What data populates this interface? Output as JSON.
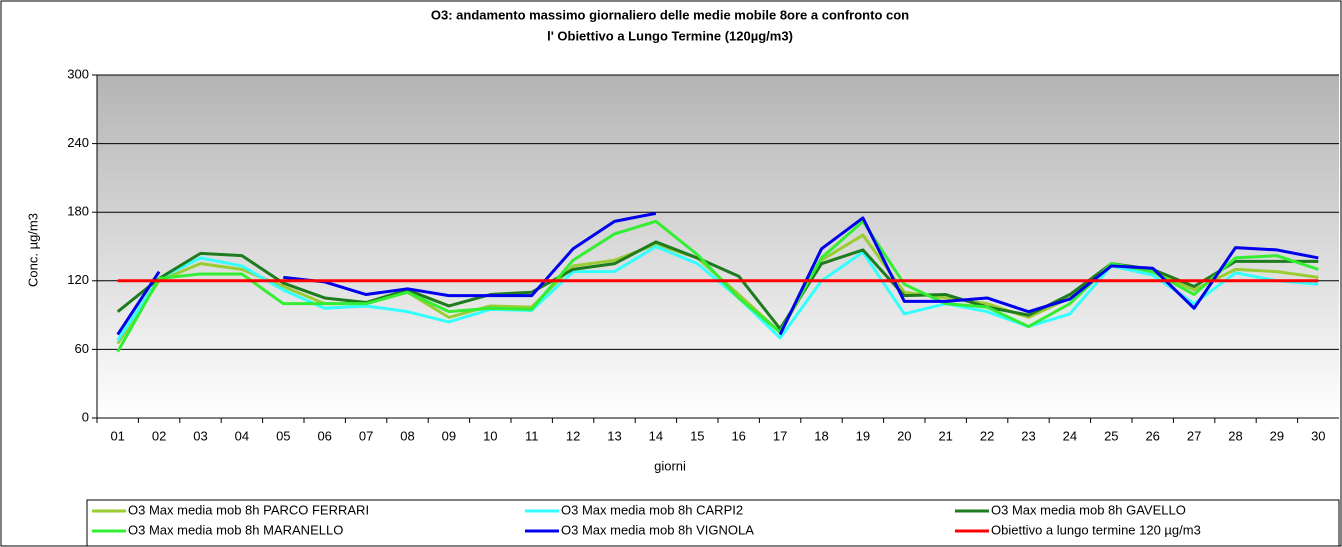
{
  "chart_data": {
    "type": "line",
    "title": [
      "O3: andamento massimo giornaliero delle medie mobile 8ore a confronto con",
      "l' Obiettivo a Lungo Termine  (120µg/m3)"
    ],
    "x_label": "giorni",
    "y_label": "Conc. µg/m3",
    "categories": [
      "01",
      "02",
      "03",
      "04",
      "05",
      "06",
      "07",
      "08",
      "09",
      "10",
      "11",
      "12",
      "13",
      "14",
      "15",
      "16",
      "17",
      "18",
      "19",
      "20",
      "21",
      "22",
      "23",
      "24",
      "25",
      "26",
      "27",
      "28",
      "29",
      "30"
    ],
    "ylim": [
      0,
      300
    ],
    "yticks": [
      0,
      60,
      120,
      180,
      240,
      300
    ],
    "grid": true,
    "series": [
      {
        "name": "O3 Max media mob 8h  PARCO FERRARI",
        "color": "#9acd32",
        "values": [
          65,
          120,
          135,
          130,
          115,
          100,
          100,
          110,
          88,
          98,
          97,
          133,
          138,
          152,
          140,
          108,
          75,
          138,
          160,
          110,
          105,
          100,
          88,
          105,
          133,
          128,
          112,
          130,
          128,
          123
        ]
      },
      {
        "name": "O3 Max media mob 8h  CARPI2",
        "color": "#33ffff",
        "values": [
          68,
          122,
          140,
          133,
          112,
          96,
          98,
          93,
          84,
          95,
          94,
          128,
          128,
          150,
          135,
          105,
          70,
          120,
          145,
          91,
          100,
          93,
          80,
          91,
          133,
          125,
          100,
          127,
          120,
          117
        ]
      },
      {
        "name": "O3 Max media mob 8h  GAVELLO",
        "color": "#1e7b1e",
        "values": [
          93,
          122,
          144,
          142,
          118,
          105,
          101,
          112,
          98,
          108,
          110,
          130,
          135,
          154,
          140,
          124,
          78,
          135,
          147,
          107,
          108,
          97,
          90,
          108,
          135,
          130,
          115,
          137,
          137,
          137
        ]
      },
      {
        "name": "O3 Max media mob 8h  MARANELLO",
        "color": "#33ee33",
        "values": [
          58,
          122,
          126,
          126,
          100,
          100,
          100,
          110,
          93,
          96,
          95,
          138,
          161,
          172,
          143,
          105,
          75,
          140,
          172,
          117,
          100,
          97,
          80,
          100,
          135,
          128,
          108,
          140,
          142,
          130
        ]
      },
      {
        "name": "O3 Max media mob 8h  VIGNOLA",
        "color": "#0000ee",
        "values": [
          73,
          128,
          null,
          null,
          123,
          119,
          108,
          113,
          107,
          107,
          107,
          148,
          172,
          179,
          null,
          null,
          73,
          148,
          175,
          102,
          102,
          105,
          93,
          104,
          133,
          131,
          96,
          149,
          147,
          140
        ]
      },
      {
        "name": "Obiettivo a lungo termine 120 µg/m3",
        "color": "#ff0000",
        "values": [
          120,
          120,
          120,
          120,
          120,
          120,
          120,
          120,
          120,
          120,
          120,
          120,
          120,
          120,
          120,
          120,
          120,
          120,
          120,
          120,
          120,
          120,
          120,
          120,
          120,
          120,
          120,
          120,
          120,
          120
        ]
      }
    ]
  }
}
